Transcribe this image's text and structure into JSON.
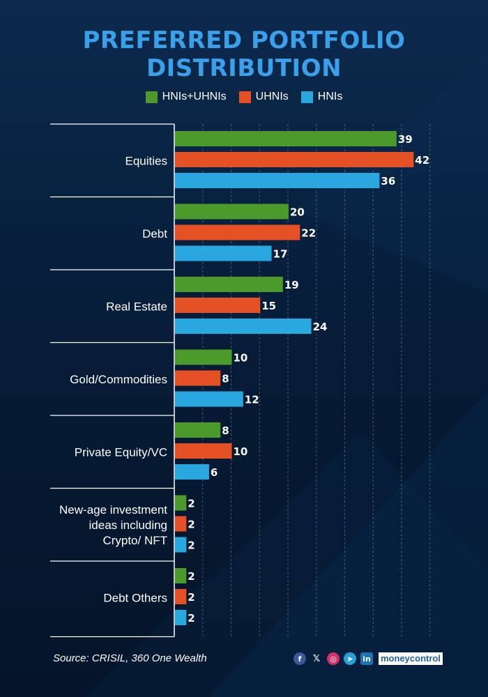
{
  "title_line1": "PREFERRED PORTFOLIO",
  "title_line2": "DISTRIBUTION",
  "colors": {
    "title": "#3aa0ea",
    "HNIs+UHNIs": "#4c9a2a",
    "UHNIs": "#e55124",
    "HNIs": "#29a8e0",
    "grid": "#ffffff"
  },
  "legend": [
    "HNIs+UHNIs",
    "UHNIs",
    "HNIs"
  ],
  "chart_data": {
    "type": "bar",
    "orientation": "horizontal",
    "categories": [
      "Equities",
      "Debt",
      "Real Estate",
      "Gold/Commodities",
      "Private Equity/VC",
      "New-age investment ideas including Crypto/ NFT",
      "Debt Others"
    ],
    "category_lines": [
      [
        "Equities"
      ],
      [
        "Debt"
      ],
      [
        "Real Estate"
      ],
      [
        "Gold/Commodities"
      ],
      [
        "Private Equity/VC"
      ],
      [
        "New-age investment",
        "ideas including",
        "Crypto/ NFT"
      ],
      [
        "Debt Others"
      ]
    ],
    "series": [
      {
        "name": "HNIs+UHNIs",
        "values": [
          39,
          20,
          19,
          10,
          8,
          2,
          2
        ]
      },
      {
        "name": "UHNIs",
        "values": [
          42,
          22,
          15,
          8,
          10,
          2,
          2
        ]
      },
      {
        "name": "HNIs",
        "values": [
          36,
          17,
          24,
          12,
          6,
          2,
          2
        ]
      }
    ],
    "xlim": [
      0,
      45
    ],
    "grid": true,
    "legend_position": "top"
  },
  "footer": {
    "source": "Source: CRISIL, 360 One Wealth",
    "social_icons": [
      "facebook-icon",
      "x-icon",
      "instagram-icon",
      "telegram-icon",
      "linkedin-icon"
    ],
    "brand": "moneycontrol"
  }
}
